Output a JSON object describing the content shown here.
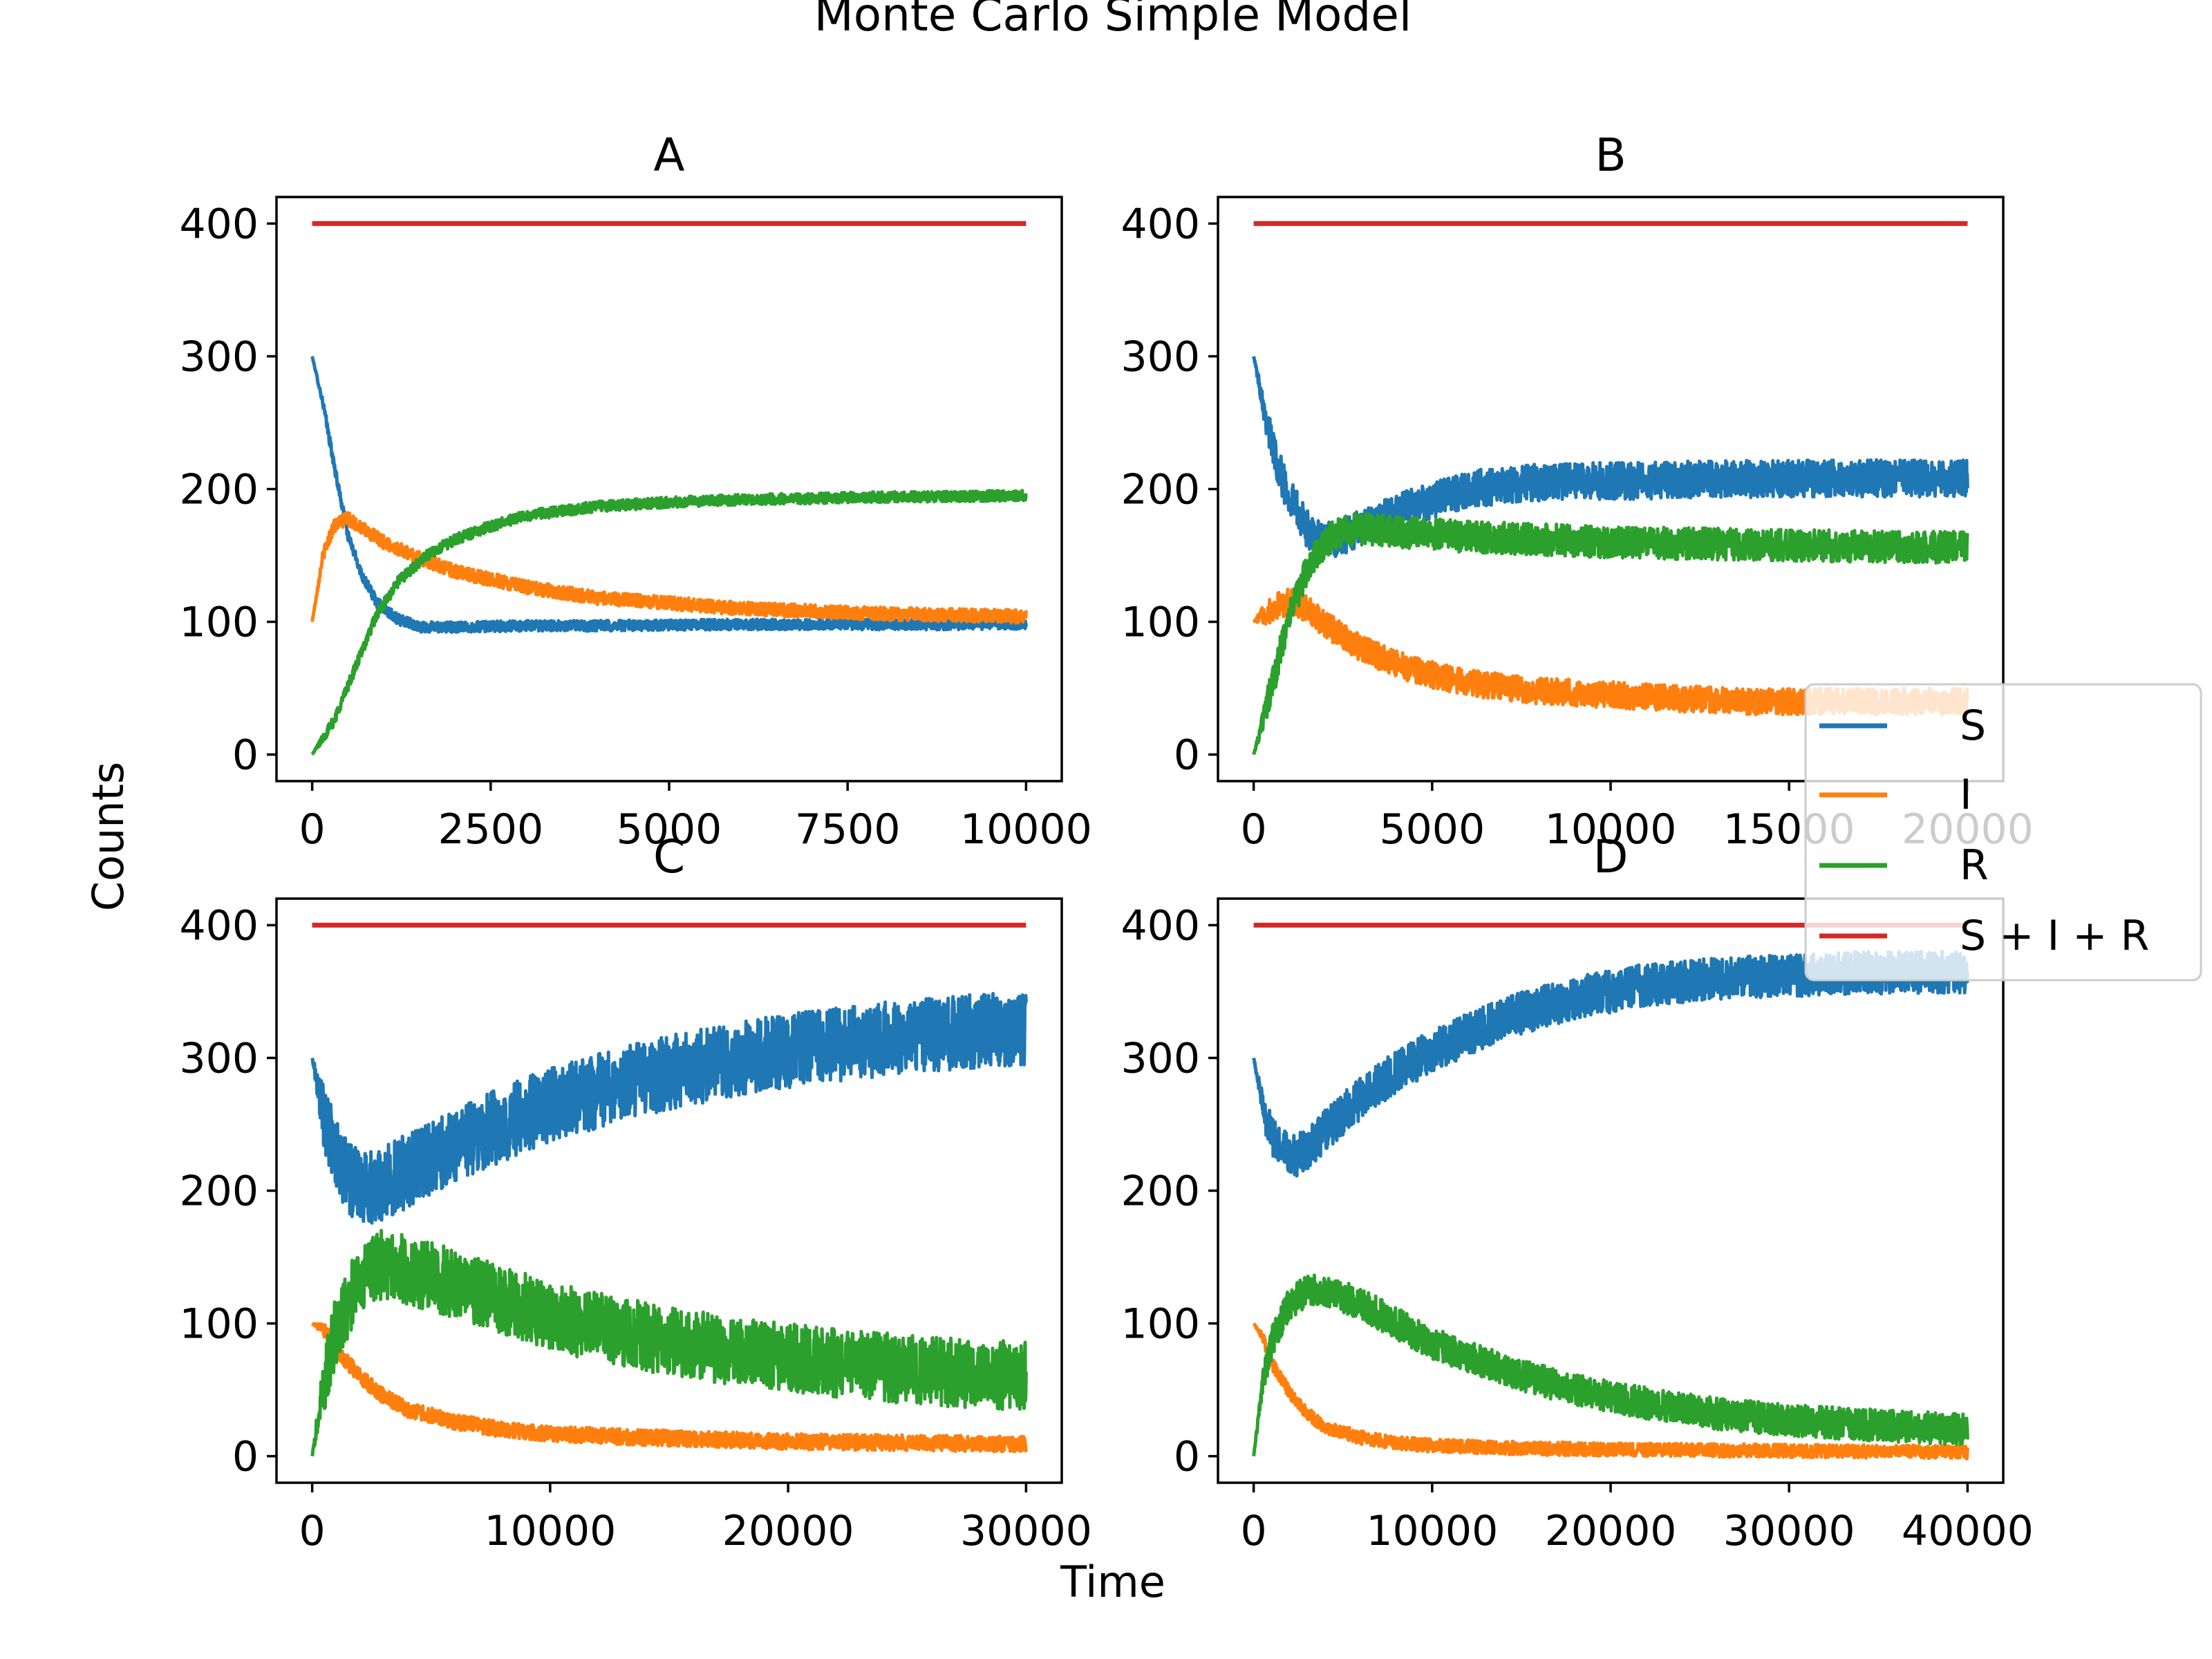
{
  "figure": {
    "suptitle": "Monte Carlo Simple Model",
    "xlabel": "Time",
    "ylabel": "Counts"
  },
  "legend": {
    "placement": "right-center, overlapping panels",
    "entries": [
      {
        "label": "S",
        "color": "#1f77b4"
      },
      {
        "label": "I",
        "color": "#ff7f0e"
      },
      {
        "label": "R",
        "color": "#2ca02c"
      },
      {
        "label": "S + I + R",
        "color": "#d62728"
      }
    ]
  },
  "chart_data": [
    {
      "type": "line",
      "title": "A",
      "xlim": [
        0,
        10000
      ],
      "ylim": [
        -20,
        420
      ],
      "xticks": [
        0,
        2500,
        5000,
        7500,
        10000
      ],
      "yticks": [
        0,
        100,
        200,
        300,
        400
      ],
      "series": [
        {
          "name": "S",
          "color": "#1f77b4",
          "x": [
            0,
            150,
            300,
            500,
            700,
            900,
            1200,
            1500,
            2000,
            3000,
            4000,
            6000,
            8000,
            10000
          ],
          "y": [
            300,
            265,
            220,
            165,
            135,
            115,
            102,
            96,
            96,
            97,
            97,
            98,
            98,
            98
          ],
          "noise": 4
        },
        {
          "name": "I",
          "color": "#ff7f0e",
          "x": [
            0,
            150,
            300,
            500,
            700,
            1000,
            1500,
            2000,
            3000,
            4000,
            6000,
            8000,
            10000
          ],
          "y": [
            100,
            150,
            172,
            178,
            170,
            160,
            148,
            138,
            126,
            118,
            110,
            106,
            104
          ],
          "noise": 5
        },
        {
          "name": "R",
          "color": "#2ca02c",
          "x": [
            0,
            300,
            600,
            900,
            1200,
            1600,
            2000,
            2500,
            3000,
            4000,
            5000,
            6000,
            8000,
            10000
          ],
          "y": [
            0,
            25,
            65,
            105,
            130,
            150,
            162,
            172,
            180,
            187,
            190,
            192,
            194,
            195
          ],
          "noise": 4
        },
        {
          "name": "S + I + R",
          "color": "#d62728",
          "x": [
            0,
            10000
          ],
          "y": [
            400,
            400
          ],
          "noise": 0
        }
      ]
    },
    {
      "type": "line",
      "title": "B",
      "xlim": [
        0,
        20000
      ],
      "ylim": [
        -20,
        420
      ],
      "xticks": [
        0,
        5000,
        10000,
        15000,
        20000
      ],
      "yticks": [
        0,
        100,
        200,
        300,
        400
      ],
      "series": [
        {
          "name": "S",
          "color": "#1f77b4",
          "x": [
            0,
            300,
            600,
            900,
            1200,
            1600,
            2000,
            3000,
            4000,
            5000,
            6000,
            8000,
            12000,
            16000,
            20000
          ],
          "y": [
            300,
            260,
            225,
            200,
            185,
            165,
            160,
            170,
            182,
            192,
            200,
            205,
            207,
            208,
            208
          ],
          "noise": 14
        },
        {
          "name": "I",
          "color": "#ff7f0e",
          "x": [
            0,
            500,
            1000,
            1500,
            2000,
            3000,
            4000,
            5000,
            6000,
            8000,
            10000,
            12000,
            14000,
            16000,
            18000,
            20000
          ],
          "y": [
            100,
            110,
            115,
            110,
            98,
            80,
            68,
            60,
            54,
            48,
            45,
            42,
            40,
            40,
            40,
            40
          ],
          "noise": 10
        },
        {
          "name": "R",
          "color": "#2ca02c",
          "x": [
            0,
            300,
            600,
            900,
            1200,
            1600,
            2000,
            2500,
            3000,
            4000,
            6000,
            10000,
            14000,
            20000
          ],
          "y": [
            0,
            30,
            60,
            95,
            120,
            145,
            160,
            168,
            170,
            168,
            164,
            160,
            158,
            156
          ],
          "noise": 12
        },
        {
          "name": "S + I + R",
          "color": "#d62728",
          "x": [
            0,
            20000
          ],
          "y": [
            400,
            400
          ],
          "noise": 0
        }
      ]
    },
    {
      "type": "line",
      "title": "C",
      "xlim": [
        0,
        30000
      ],
      "ylim": [
        -20,
        420
      ],
      "xticks": [
        0,
        10000,
        20000,
        30000
      ],
      "yticks": [
        0,
        100,
        200,
        300,
        400
      ],
      "series": [
        {
          "name": "S",
          "color": "#1f77b4",
          "x": [
            0,
            500,
            1000,
            2000,
            3000,
            4000,
            6000,
            8000,
            10000,
            14000,
            18000,
            22000,
            26000,
            30000
          ],
          "y": [
            300,
            255,
            225,
            200,
            205,
            215,
            235,
            250,
            265,
            285,
            300,
            310,
            318,
            322
          ],
          "noise": 28
        },
        {
          "name": "I",
          "color": "#ff7f0e",
          "x": [
            0,
            500,
            1000,
            2000,
            3000,
            4000,
            6000,
            8000,
            10000,
            14000,
            20000,
            25000,
            30000
          ],
          "y": [
            100,
            95,
            80,
            60,
            45,
            35,
            26,
            20,
            17,
            14,
            11,
            10,
            9
          ],
          "noise": 6
        },
        {
          "name": "R",
          "color": "#2ca02c",
          "x": [
            0,
            500,
            1000,
            2000,
            3000,
            4000,
            6000,
            8000,
            10000,
            14000,
            18000,
            22000,
            26000,
            30000
          ],
          "y": [
            0,
            55,
            95,
            135,
            145,
            140,
            130,
            118,
            105,
            90,
            78,
            70,
            64,
            60
          ],
          "noise": 26
        },
        {
          "name": "S + I + R",
          "color": "#d62728",
          "x": [
            0,
            30000
          ],
          "y": [
            400,
            400
          ],
          "noise": 0
        }
      ]
    },
    {
      "type": "line",
      "title": "D",
      "xlim": [
        0,
        40000
      ],
      "ylim": [
        -20,
        420
      ],
      "xticks": [
        0,
        10000,
        20000,
        30000,
        40000
      ],
      "yticks": [
        0,
        100,
        200,
        300,
        400
      ],
      "series": [
        {
          "name": "S",
          "color": "#1f77b4",
          "x": [
            0,
            500,
            1000,
            2000,
            3000,
            4000,
            6000,
            8000,
            10000,
            14000,
            18000,
            22000,
            26000,
            30000,
            34000,
            40000
          ],
          "y": [
            300,
            265,
            240,
            225,
            230,
            245,
            270,
            290,
            305,
            330,
            345,
            355,
            360,
            362,
            364,
            365
          ],
          "noise": 16
        },
        {
          "name": "I",
          "color": "#ff7f0e",
          "x": [
            0,
            500,
            1000,
            2000,
            3000,
            4000,
            6000,
            8000,
            10000,
            15000,
            20000,
            30000,
            40000
          ],
          "y": [
            100,
            90,
            70,
            48,
            32,
            22,
            14,
            10,
            8,
            6,
            5,
            4,
            3
          ],
          "noise": 5
        },
        {
          "name": "R",
          "color": "#2ca02c",
          "x": [
            0,
            500,
            1000,
            2000,
            3000,
            4000,
            6000,
            8000,
            10000,
            14000,
            18000,
            22000,
            26000,
            30000,
            34000,
            40000
          ],
          "y": [
            0,
            55,
            85,
            115,
            125,
            125,
            115,
            100,
            85,
            65,
            50,
            40,
            32,
            27,
            24,
            20
          ],
          "noise": 12
        },
        {
          "name": "S + I + R",
          "color": "#d62728",
          "x": [
            0,
            40000
          ],
          "y": [
            400,
            400
          ],
          "noise": 0
        }
      ]
    }
  ]
}
